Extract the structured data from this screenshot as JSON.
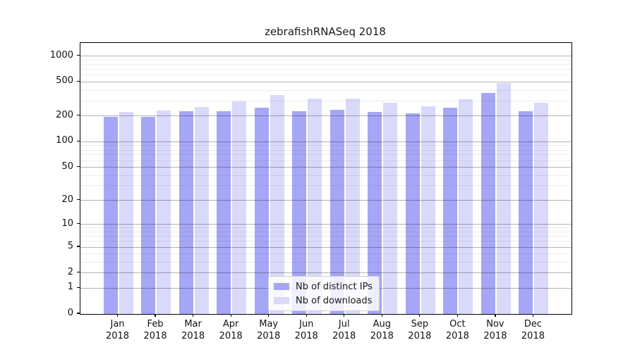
{
  "chart_data": {
    "type": "bar",
    "title": "zebrafishRNASeq 2018",
    "categories": [
      "Jan",
      "Feb",
      "Mar",
      "Apr",
      "May",
      "Jun",
      "Jul",
      "Aug",
      "Sep",
      "Oct",
      "Nov",
      "Dec"
    ],
    "category_year": "2018",
    "series": [
      {
        "name": "Nb of distinct IPs",
        "color": "#a6a6f6",
        "values": [
          195,
          195,
          226,
          229,
          248,
          228,
          235,
          222,
          213,
          251,
          375,
          229
        ]
      },
      {
        "name": "Nb of downloads",
        "color": "#d9d9fa",
        "values": [
          222,
          234,
          256,
          295,
          353,
          320,
          323,
          287,
          262,
          313,
          488,
          286
        ]
      }
    ],
    "xlabel": "",
    "ylabel": "",
    "yscale": "log1p",
    "ylim": [
      0,
      1424
    ],
    "y_major_ticks": [
      0,
      1,
      2,
      5,
      10,
      20,
      50,
      100,
      200,
      500,
      1000
    ],
    "y_minor_ticks": [
      3,
      4,
      6,
      7,
      8,
      9,
      30,
      40,
      60,
      70,
      80,
      90,
      300,
      400,
      600,
      700,
      800,
      900
    ],
    "grid": "on",
    "legend_position": "lower-center-inside"
  }
}
